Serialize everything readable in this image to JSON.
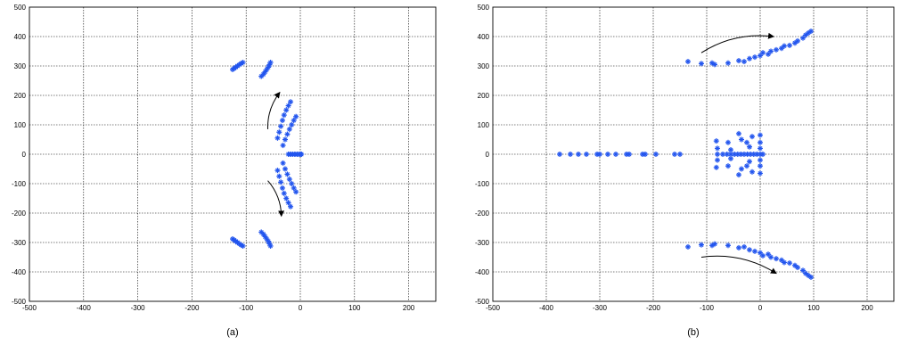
{
  "colors": {
    "marker": "#2255ee",
    "arrow": "#000000",
    "grid": "#000000"
  },
  "chart_data": [
    {
      "type": "scatter",
      "caption": "(a)",
      "xlim": [
        -500,
        250
      ],
      "ylim": [
        -500,
        500
      ],
      "xticks": [
        -500,
        -400,
        -300,
        -200,
        -100,
        0,
        100,
        200
      ],
      "yticks": [
        -500,
        -400,
        -300,
        -200,
        -100,
        0,
        100,
        200,
        300,
        400,
        500
      ],
      "grid": true,
      "marker": "asterisk",
      "series": [
        {
          "values": [
            [
              -125,
              288
            ],
            [
              -122,
              292
            ],
            [
              -119,
              296
            ],
            [
              -116,
              300
            ],
            [
              -112,
              305
            ],
            [
              -109,
              309
            ],
            [
              -106,
              312
            ],
            [
              -125,
              -288
            ],
            [
              -122,
              -292
            ],
            [
              -119,
              -296
            ],
            [
              -116,
              -300
            ],
            [
              -112,
              -305
            ],
            [
              -109,
              -309
            ],
            [
              -106,
              -312
            ],
            [
              -72,
              265
            ],
            [
              -68,
              272
            ],
            [
              -65,
              280
            ],
            [
              -62,
              288
            ],
            [
              -59,
              296
            ],
            [
              -57,
              304
            ],
            [
              -55,
              312
            ],
            [
              -72,
              -265
            ],
            [
              -68,
              -272
            ],
            [
              -65,
              -280
            ],
            [
              -62,
              -288
            ],
            [
              -59,
              -296
            ],
            [
              -57,
              -304
            ],
            [
              -55,
              -312
            ],
            [
              -42,
              55
            ],
            [
              -39,
              75
            ],
            [
              -36,
              95
            ],
            [
              -33,
              115
            ],
            [
              -30,
              133
            ],
            [
              -26,
              150
            ],
            [
              -22,
              165
            ],
            [
              -18,
              178
            ],
            [
              -42,
              -55
            ],
            [
              -39,
              -75
            ],
            [
              -36,
              -95
            ],
            [
              -33,
              -115
            ],
            [
              -30,
              -133
            ],
            [
              -26,
              -150
            ],
            [
              -22,
              -165
            ],
            [
              -18,
              -178
            ],
            [
              -32,
              30
            ],
            [
              -28,
              50
            ],
            [
              -24,
              68
            ],
            [
              -20,
              85
            ],
            [
              -16,
              100
            ],
            [
              -12,
              115
            ],
            [
              -8,
              128
            ],
            [
              -32,
              -30
            ],
            [
              -28,
              -50
            ],
            [
              -24,
              -68
            ],
            [
              -20,
              -85
            ],
            [
              -16,
              -100
            ],
            [
              -12,
              -115
            ],
            [
              -8,
              -128
            ],
            [
              -22,
              0
            ],
            [
              -18,
              0
            ],
            [
              -14,
              0
            ],
            [
              -10,
              0
            ],
            [
              -6,
              0
            ],
            [
              -3,
              0
            ],
            [
              0,
              0
            ],
            [
              2,
              0
            ]
          ]
        }
      ],
      "arrows": [
        {
          "from": [
            -60,
            85
          ],
          "to": [
            -38,
            210
          ]
        },
        {
          "from": [
            -60,
            -90
          ],
          "to": [
            -35,
            -210
          ]
        }
      ]
    },
    {
      "type": "scatter",
      "caption": "(b)",
      "xlim": [
        -500,
        250
      ],
      "ylim": [
        -500,
        500
      ],
      "xticks": [
        -500,
        -400,
        -300,
        -200,
        -100,
        0,
        100,
        200
      ],
      "yticks": [
        -500,
        -400,
        -300,
        -200,
        -100,
        0,
        100,
        200,
        300,
        400,
        500
      ],
      "grid": true,
      "marker": "asterisk",
      "series": [
        {
          "values": [
            [
              -135,
              315
            ],
            [
              -110,
              308
            ],
            [
              -90,
              310
            ],
            [
              -85,
              305
            ],
            [
              -60,
              310
            ],
            [
              -40,
              318
            ],
            [
              -30,
              315
            ],
            [
              -20,
              325
            ],
            [
              -10,
              330
            ],
            [
              0,
              335
            ],
            [
              5,
              345
            ],
            [
              15,
              340
            ],
            [
              20,
              350
            ],
            [
              30,
              355
            ],
            [
              40,
              360
            ],
            [
              45,
              368
            ],
            [
              55,
              370
            ],
            [
              65,
              378
            ],
            [
              70,
              385
            ],
            [
              80,
              395
            ],
            [
              85,
              405
            ],
            [
              90,
              412
            ],
            [
              95,
              418
            ],
            [
              -135,
              -315
            ],
            [
              -110,
              -308
            ],
            [
              -90,
              -310
            ],
            [
              -85,
              -305
            ],
            [
              -60,
              -310
            ],
            [
              -40,
              -318
            ],
            [
              -30,
              -315
            ],
            [
              -20,
              -325
            ],
            [
              -10,
              -330
            ],
            [
              0,
              -335
            ],
            [
              5,
              -345
            ],
            [
              15,
              -340
            ],
            [
              20,
              -350
            ],
            [
              30,
              -355
            ],
            [
              40,
              -360
            ],
            [
              45,
              -368
            ],
            [
              55,
              -370
            ],
            [
              65,
              -378
            ],
            [
              70,
              -385
            ],
            [
              80,
              -395
            ],
            [
              85,
              -405
            ],
            [
              90,
              -412
            ],
            [
              95,
              -418
            ],
            [
              -375,
              0
            ],
            [
              -355,
              0
            ],
            [
              -340,
              0
            ],
            [
              -325,
              0
            ],
            [
              -305,
              0
            ],
            [
              -300,
              0
            ],
            [
              -285,
              0
            ],
            [
              -270,
              0
            ],
            [
              -250,
              0
            ],
            [
              -245,
              0
            ],
            [
              -220,
              0
            ],
            [
              -215,
              0
            ],
            [
              -195,
              0
            ],
            [
              -160,
              0
            ],
            [
              -150,
              0
            ],
            [
              -80,
              0
            ],
            [
              -70,
              0
            ],
            [
              -62,
              0
            ],
            [
              -55,
              0
            ],
            [
              -48,
              0
            ],
            [
              -42,
              0
            ],
            [
              -36,
              0
            ],
            [
              -30,
              0
            ],
            [
              -24,
              0
            ],
            [
              -18,
              0
            ],
            [
              -12,
              0
            ],
            [
              -6,
              0
            ],
            [
              0,
              0
            ],
            [
              5,
              0
            ],
            [
              -82,
              45
            ],
            [
              -82,
              -45
            ],
            [
              -80,
              20
            ],
            [
              -80,
              -20
            ],
            [
              -60,
              40
            ],
            [
              -60,
              -40
            ],
            [
              -55,
              15
            ],
            [
              -55,
              -15
            ],
            [
              -40,
              70
            ],
            [
              -40,
              -70
            ],
            [
              -35,
              50
            ],
            [
              -35,
              -50
            ],
            [
              -25,
              40
            ],
            [
              -25,
              -40
            ],
            [
              -20,
              25
            ],
            [
              -20,
              -25
            ],
            [
              -15,
              60
            ],
            [
              -15,
              -60
            ],
            [
              0,
              65
            ],
            [
              0,
              -65
            ],
            [
              0,
              40
            ],
            [
              0,
              -40
            ],
            [
              0,
              20
            ],
            [
              0,
              -20
            ]
          ]
        }
      ],
      "arrows": [
        {
          "from": [
            -110,
            345
          ],
          "to": [
            25,
            400
          ]
        },
        {
          "from": [
            -110,
            -350
          ],
          "to": [
            30,
            -405
          ]
        }
      ]
    }
  ]
}
